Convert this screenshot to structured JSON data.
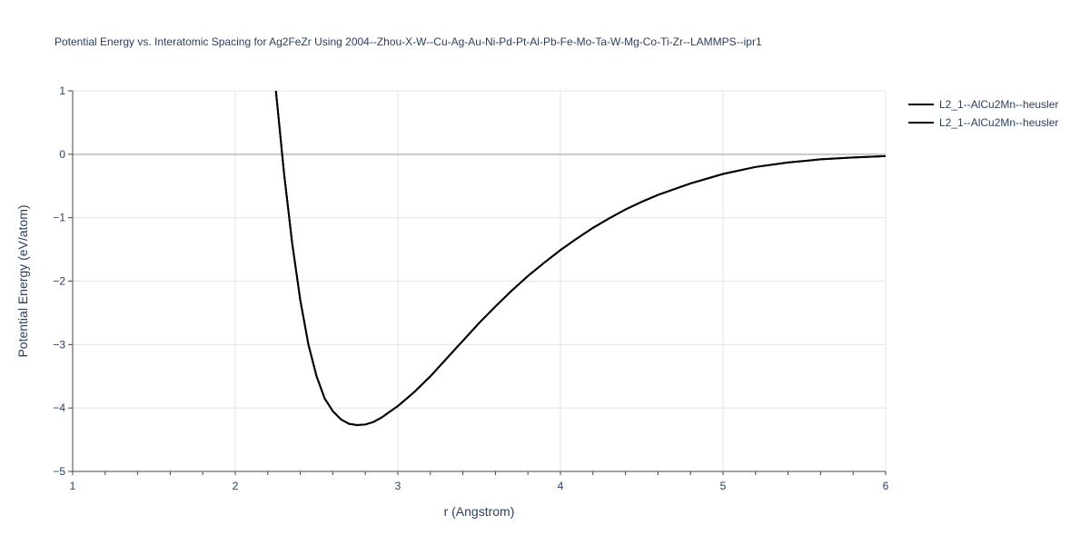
{
  "chart_data": {
    "type": "line",
    "title": "Potential Energy vs. Interatomic Spacing for Ag2FeZr Using 2004--Zhou-X-W--Cu-Ag-Au-Ni-Pd-Pt-Al-Pb-Fe-Mo-Ta-W-Mg-Co-Ti-Zr--LAMMPS--ipr1",
    "xlabel": "r (Angstrom)",
    "ylabel": "Potential Energy (eV/atom)",
    "xlim": [
      1,
      6
    ],
    "ylim": [
      -5,
      1
    ],
    "x_ticks": [
      1,
      2,
      3,
      4,
      5,
      6
    ],
    "x_tick_labels": [
      "1",
      "2",
      "3",
      "4",
      "5",
      "6"
    ],
    "y_ticks": [
      1,
      0,
      -1,
      -2,
      -3,
      -4,
      -5
    ],
    "y_tick_labels": [
      "1",
      "0",
      "−1",
      "−2",
      "−3",
      "−4",
      "−5"
    ],
    "grid": true,
    "legend_position": "top-right",
    "series": [
      {
        "name": "L2_1--AlCu2Mn--heusler",
        "color": "#000000",
        "x": [
          2.25,
          2.3,
          2.35,
          2.4,
          2.45,
          2.5,
          2.55,
          2.6,
          2.65,
          2.7,
          2.75,
          2.8,
          2.85,
          2.9,
          2.95,
          3.0,
          3.1,
          3.2,
          3.3,
          3.4,
          3.5,
          3.6,
          3.7,
          3.8,
          3.9,
          4.0,
          4.1,
          4.2,
          4.3,
          4.4,
          4.5,
          4.6,
          4.8,
          5.0,
          5.2,
          5.4,
          5.6,
          5.8,
          6.0
        ],
        "y": [
          1.0,
          -0.3,
          -1.4,
          -2.3,
          -3.0,
          -3.5,
          -3.85,
          -4.05,
          -4.18,
          -4.25,
          -4.27,
          -4.26,
          -4.22,
          -4.15,
          -4.06,
          -3.97,
          -3.75,
          -3.5,
          -3.22,
          -2.94,
          -2.66,
          -2.4,
          -2.15,
          -1.92,
          -1.71,
          -1.51,
          -1.33,
          -1.16,
          -1.01,
          -0.87,
          -0.75,
          -0.64,
          -0.46,
          -0.31,
          -0.2,
          -0.13,
          -0.08,
          -0.05,
          -0.03
        ]
      },
      {
        "name": "L2_1--AlCu2Mn--heusler",
        "color": "#000000",
        "x": [
          2.25,
          2.3,
          2.35,
          2.4,
          2.45,
          2.5,
          2.55,
          2.6,
          2.65,
          2.7,
          2.75,
          2.8,
          2.85,
          2.9,
          2.95,
          3.0,
          3.1,
          3.2,
          3.3,
          3.4,
          3.5,
          3.6,
          3.7,
          3.8,
          3.9,
          4.0,
          4.1,
          4.2,
          4.3,
          4.4,
          4.5,
          4.6,
          4.8,
          5.0,
          5.2,
          5.4,
          5.6,
          5.8,
          6.0
        ],
        "y": [
          1.0,
          -0.3,
          -1.4,
          -2.3,
          -3.0,
          -3.5,
          -3.85,
          -4.05,
          -4.18,
          -4.25,
          -4.27,
          -4.26,
          -4.22,
          -4.15,
          -4.06,
          -3.97,
          -3.75,
          -3.5,
          -3.22,
          -2.94,
          -2.66,
          -2.4,
          -2.15,
          -1.92,
          -1.71,
          -1.51,
          -1.33,
          -1.16,
          -1.01,
          -0.87,
          -0.75,
          -0.64,
          -0.46,
          -0.31,
          -0.2,
          -0.13,
          -0.08,
          -0.05,
          -0.03
        ]
      }
    ]
  }
}
